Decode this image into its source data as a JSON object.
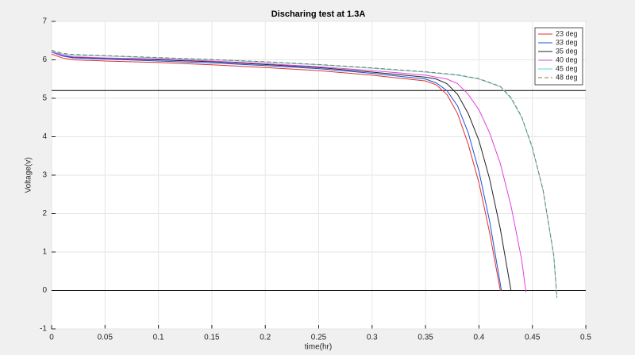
{
  "chart_data": {
    "type": "line",
    "title": "Discharing test at 1.3A",
    "xlabel": "time(hr)",
    "ylabel": "Voltage(v)",
    "xlim": [
      0,
      0.5
    ],
    "xticks": [
      0,
      0.05,
      0.1,
      0.15,
      0.2,
      0.25,
      0.3,
      0.35,
      0.4,
      0.45,
      0.5
    ],
    "ylim": [
      -1,
      7
    ],
    "yticks": [
      -1,
      0,
      1,
      2,
      3,
      4,
      5,
      6,
      7
    ],
    "grid": true,
    "legend": "top-right",
    "reference_lines": [
      5.2,
      0
    ],
    "series": [
      {
        "name": "23 deg",
        "color": "#e03030",
        "dash": false,
        "x": [
          0,
          0.01,
          0.02,
          0.05,
          0.1,
          0.15,
          0.2,
          0.25,
          0.3,
          0.35,
          0.36,
          0.37,
          0.38,
          0.39,
          0.4,
          0.41,
          0.42
        ],
        "values": [
          6.15,
          6.05,
          6.0,
          5.97,
          5.93,
          5.87,
          5.8,
          5.72,
          5.6,
          5.45,
          5.35,
          5.1,
          4.6,
          3.8,
          2.8,
          1.5,
          0
        ]
      },
      {
        "name": "33 deg",
        "color": "#1f4fd0",
        "dash": false,
        "x": [
          0,
          0.01,
          0.02,
          0.05,
          0.1,
          0.15,
          0.2,
          0.25,
          0.3,
          0.35,
          0.36,
          0.37,
          0.38,
          0.39,
          0.4,
          0.41,
          0.421
        ],
        "values": [
          6.2,
          6.1,
          6.05,
          6.02,
          5.97,
          5.92,
          5.85,
          5.77,
          5.65,
          5.5,
          5.4,
          5.2,
          4.8,
          4.1,
          3.1,
          1.8,
          0
        ]
      },
      {
        "name": "35 deg",
        "color": "#222222",
        "dash": false,
        "x": [
          0,
          0.01,
          0.02,
          0.05,
          0.1,
          0.15,
          0.2,
          0.25,
          0.3,
          0.35,
          0.36,
          0.37,
          0.38,
          0.39,
          0.4,
          0.41,
          0.42,
          0.43
        ],
        "values": [
          6.22,
          6.12,
          6.07,
          6.04,
          6.0,
          5.95,
          5.88,
          5.8,
          5.68,
          5.55,
          5.5,
          5.38,
          5.1,
          4.6,
          3.9,
          2.9,
          1.6,
          0
        ]
      },
      {
        "name": "40 deg",
        "color": "#e040e0",
        "dash": false,
        "x": [
          0,
          0.01,
          0.02,
          0.05,
          0.1,
          0.15,
          0.2,
          0.25,
          0.3,
          0.35,
          0.37,
          0.38,
          0.39,
          0.4,
          0.41,
          0.42,
          0.43,
          0.44,
          0.444
        ],
        "values": [
          6.2,
          6.12,
          6.08,
          6.05,
          6.02,
          5.97,
          5.9,
          5.82,
          5.72,
          5.6,
          5.5,
          5.38,
          5.1,
          4.7,
          4.1,
          3.3,
          2.2,
          0.8,
          -0.05
        ]
      },
      {
        "name": "45 deg",
        "color": "#5fd0e0",
        "dash": false,
        "x": [
          0,
          0.01,
          0.02,
          0.05,
          0.1,
          0.15,
          0.2,
          0.25,
          0.3,
          0.35,
          0.38,
          0.4,
          0.42,
          0.43,
          0.44,
          0.45,
          0.46,
          0.47,
          0.473
        ],
        "values": [
          6.22,
          6.15,
          6.12,
          6.1,
          6.05,
          6.0,
          5.94,
          5.87,
          5.78,
          5.68,
          5.6,
          5.5,
          5.3,
          5.0,
          4.5,
          3.7,
          2.6,
          0.9,
          -0.2
        ]
      },
      {
        "name": "48 deg",
        "color": "#8a7a50",
        "dash": true,
        "x": [
          0,
          0.01,
          0.02,
          0.05,
          0.1,
          0.15,
          0.2,
          0.25,
          0.3,
          0.35,
          0.38,
          0.4,
          0.42,
          0.43,
          0.44,
          0.45,
          0.46,
          0.47,
          0.473
        ],
        "values": [
          6.25,
          6.17,
          6.14,
          6.11,
          6.06,
          6.01,
          5.95,
          5.88,
          5.79,
          5.69,
          5.61,
          5.51,
          5.31,
          5.02,
          4.52,
          3.72,
          2.62,
          0.92,
          -0.18
        ]
      }
    ]
  }
}
